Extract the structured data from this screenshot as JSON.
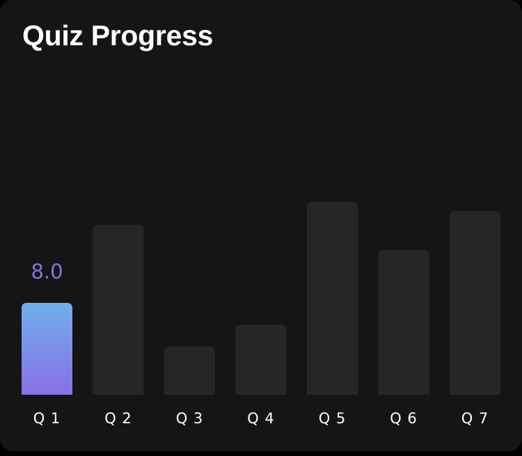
{
  "card": {
    "title": "Quiz Progress"
  },
  "colors": {
    "card_background": "#151515",
    "inactive_bar": "#262626",
    "active_gradient_top": "#6fb0eb",
    "active_gradient_bottom": "#8a6fe6",
    "value_label": "#8a72e0",
    "tick_label": "#ffffff"
  },
  "chart_data": {
    "type": "bar",
    "title": "Quiz Progress",
    "categories": [
      "Q 1",
      "Q 2",
      "Q 3",
      "Q 4",
      "Q 5",
      "Q 6",
      "Q 7"
    ],
    "values": [
      8.0,
      14.8,
      4.2,
      6.1,
      16.8,
      12.6,
      16.0
    ],
    "ylim": [
      0,
      20
    ],
    "highlighted_index": 0,
    "highlighted_value_label": "8.0",
    "grid": false,
    "legend": "none"
  }
}
